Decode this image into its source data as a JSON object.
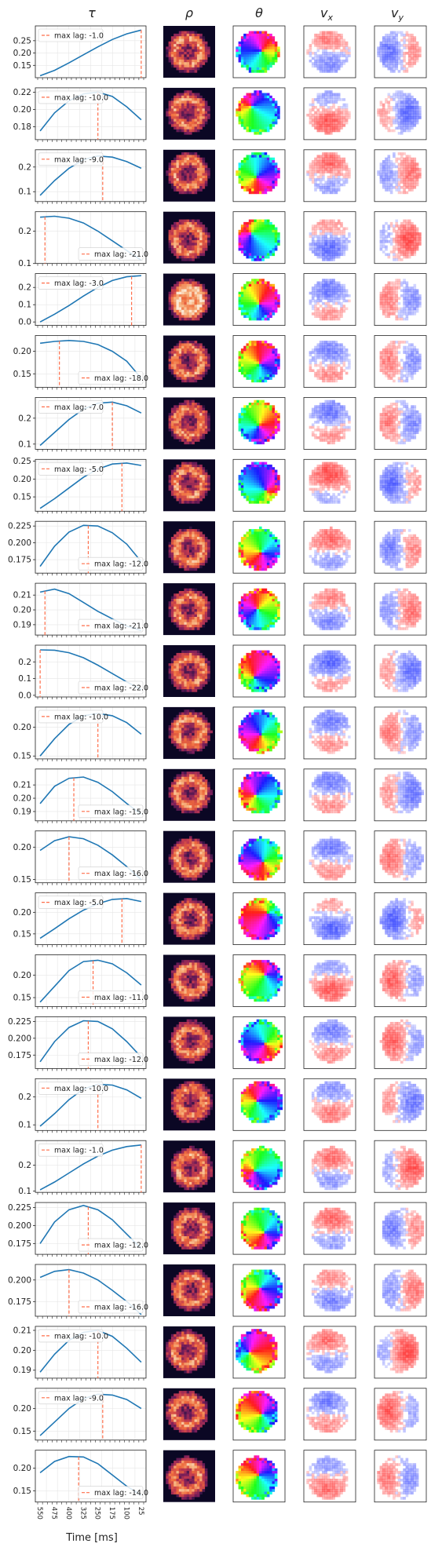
{
  "column_headers": [
    "τ",
    "ρ",
    "θ",
    "v",
    "v"
  ],
  "column_header_subscripts": [
    "",
    "",
    "",
    "x",
    "y"
  ],
  "x_axis_title": "Time [ms]",
  "x_tick_labels": [
    "550",
    "475",
    "400",
    "325",
    "250",
    "175",
    "100",
    "25"
  ],
  "legend_prefix": "max lag: ",
  "colors": {
    "curve": "#1f77b4",
    "lag_line": "#ff6e4a",
    "grid": "#e6e6e6",
    "rho_bg": "#0b0724",
    "rho_colormap": [
      "#0b0724",
      "#3b1549",
      "#7a1e5a",
      "#c0394f",
      "#ef6a3c",
      "#f7b07b",
      "#fbe8d5"
    ],
    "v_neg": "#2b3bff",
    "v_pos": "#ff2020"
  },
  "chart_data": {
    "type": "line",
    "panel_count": 24,
    "x_axis_label": "Time [ms]",
    "x_range_ms": [
      575,
      0
    ],
    "panels": [
      {
        "lag": -1.0,
        "lag_label": "-1.0",
        "yticks": [
          0.15,
          0.2,
          0.25
        ],
        "ylim": [
          0.1,
          0.31
        ],
        "x": [
          550,
          475,
          400,
          325,
          250,
          175,
          100,
          25
        ],
        "y": [
          0.108,
          0.13,
          0.16,
          0.193,
          0.225,
          0.255,
          0.278,
          0.293
        ]
      },
      {
        "lag": -10.0,
        "lag_label": "-10.0",
        "yticks": [
          0.18,
          0.2,
          0.22
        ],
        "ylim": [
          0.165,
          0.225
        ],
        "x": [
          550,
          475,
          400,
          325,
          250,
          175,
          100,
          25
        ],
        "y": [
          0.175,
          0.196,
          0.21,
          0.218,
          0.22,
          0.215,
          0.203,
          0.188
        ]
      },
      {
        "lag": -9.0,
        "lag_label": "-9.0",
        "yticks": [
          0.1,
          0.2
        ],
        "ylim": [
          0.06,
          0.27
        ],
        "x": [
          550,
          475,
          400,
          325,
          250,
          175,
          100,
          25
        ],
        "y": [
          0.085,
          0.145,
          0.195,
          0.23,
          0.245,
          0.24,
          0.222,
          0.195
        ]
      },
      {
        "lag": -21.0,
        "lag_label": "-21.0",
        "yticks": [
          0.1,
          0.2
        ],
        "ylim": [
          0.1,
          0.26
        ],
        "x": [
          550,
          475,
          400,
          325,
          250,
          175,
          100,
          25
        ],
        "y": [
          0.243,
          0.246,
          0.24,
          0.225,
          0.2,
          0.17,
          0.14,
          0.11
        ]
      },
      {
        "lag": -3.0,
        "lag_label": "-3.0",
        "yticks": [
          0.0,
          0.1,
          0.2
        ],
        "ylim": [
          -0.02,
          0.28
        ],
        "x": [
          550,
          475,
          400,
          325,
          250,
          175,
          100,
          25
        ],
        "y": [
          0.0,
          0.045,
          0.095,
          0.15,
          0.2,
          0.24,
          0.262,
          0.268
        ]
      },
      {
        "lag": -18.0,
        "lag_label": "-18.0",
        "yticks": [
          0.15,
          0.2
        ],
        "ylim": [
          0.12,
          0.235
        ],
        "x": [
          550,
          475,
          400,
          325,
          250,
          175,
          100,
          25
        ],
        "y": [
          0.218,
          0.222,
          0.224,
          0.222,
          0.215,
          0.2,
          0.178,
          0.14
        ]
      },
      {
        "lag": -7.0,
        "lag_label": "-7.0",
        "yticks": [
          0.1,
          0.2
        ],
        "ylim": [
          0.08,
          0.28
        ],
        "x": [
          550,
          475,
          400,
          325,
          250,
          175,
          100,
          25
        ],
        "y": [
          0.095,
          0.145,
          0.195,
          0.235,
          0.258,
          0.262,
          0.248,
          0.22
        ]
      },
      {
        "lag": -5.0,
        "lag_label": "-5.0",
        "yticks": [
          0.15,
          0.2,
          0.25
        ],
        "ylim": [
          0.11,
          0.255
        ],
        "x": [
          550,
          475,
          400,
          325,
          250,
          175,
          100,
          25
        ],
        "y": [
          0.118,
          0.145,
          0.175,
          0.205,
          0.228,
          0.242,
          0.245,
          0.238
        ]
      },
      {
        "lag": -12.0,
        "lag_label": "-12.0",
        "yticks": [
          0.175,
          0.2,
          0.225
        ],
        "ylim": [
          0.155,
          0.232
        ],
        "x": [
          550,
          475,
          400,
          325,
          250,
          175,
          100,
          25
        ],
        "y": [
          0.165,
          0.195,
          0.216,
          0.226,
          0.225,
          0.215,
          0.198,
          0.172
        ]
      },
      {
        "lag": -21.0,
        "lag_label": "-21.0",
        "yticks": [
          0.19,
          0.2,
          0.21
        ],
        "ylim": [
          0.183,
          0.218
        ],
        "x": [
          550,
          475,
          400,
          325,
          250,
          175,
          100,
          25
        ],
        "y": [
          0.212,
          0.214,
          0.211,
          0.205,
          0.199,
          0.194,
          0.189,
          0.186
        ]
      },
      {
        "lag": -22.0,
        "lag_label": "-22.0",
        "yticks": [
          0.0,
          0.1,
          0.2
        ],
        "ylim": [
          -0.01,
          0.3
        ],
        "x": [
          550,
          475,
          400,
          325,
          250,
          175,
          100,
          25
        ],
        "y": [
          0.272,
          0.27,
          0.255,
          0.225,
          0.18,
          0.13,
          0.08,
          0.035
        ]
      },
      {
        "lag": -10.0,
        "lag_label": "-10.0",
        "yticks": [
          0.15,
          0.2
        ],
        "ylim": [
          0.145,
          0.235
        ],
        "x": [
          550,
          475,
          400,
          325,
          250,
          175,
          100,
          25
        ],
        "y": [
          0.15,
          0.18,
          0.205,
          0.22,
          0.224,
          0.22,
          0.208,
          0.188
        ]
      },
      {
        "lag": -15.0,
        "lag_label": "-15.0",
        "yticks": [
          0.19,
          0.2,
          0.21
        ],
        "ylim": [
          0.183,
          0.222
        ],
        "x": [
          550,
          475,
          400,
          325,
          250,
          175,
          100,
          25
        ],
        "y": [
          0.196,
          0.209,
          0.215,
          0.216,
          0.212,
          0.205,
          0.196,
          0.188
        ]
      },
      {
        "lag": -16.0,
        "lag_label": "-16.0",
        "yticks": [
          0.15,
          0.2
        ],
        "ylim": [
          0.145,
          0.225
        ],
        "x": [
          550,
          475,
          400,
          325,
          250,
          175,
          100,
          25
        ],
        "y": [
          0.195,
          0.21,
          0.216,
          0.213,
          0.203,
          0.188,
          0.17,
          0.15
        ]
      },
      {
        "lag": -5.0,
        "lag_label": "-5.0",
        "yticks": [
          0.15,
          0.2
        ],
        "ylim": [
          0.125,
          0.245
        ],
        "x": [
          550,
          475,
          400,
          325,
          250,
          175,
          100,
          25
        ],
        "y": [
          0.14,
          0.162,
          0.185,
          0.205,
          0.22,
          0.23,
          0.232,
          0.225
        ]
      },
      {
        "lag": -11.0,
        "lag_label": "-11.0",
        "yticks": [
          0.15,
          0.2
        ],
        "ylim": [
          0.13,
          0.245
        ],
        "x": [
          550,
          475,
          400,
          325,
          250,
          175,
          100,
          25
        ],
        "y": [
          0.14,
          0.175,
          0.21,
          0.23,
          0.233,
          0.225,
          0.205,
          0.178
        ]
      },
      {
        "lag": -12.0,
        "lag_label": "-12.0",
        "yticks": [
          0.175,
          0.2,
          0.225
        ],
        "ylim": [
          0.155,
          0.232
        ],
        "x": [
          550,
          475,
          400,
          325,
          250,
          175,
          100,
          25
        ],
        "y": [
          0.165,
          0.195,
          0.216,
          0.226,
          0.225,
          0.214,
          0.195,
          0.172
        ]
      },
      {
        "lag": -10.0,
        "lag_label": "-10.0",
        "yticks": [
          0.1,
          0.2
        ],
        "ylim": [
          0.08,
          0.265
        ],
        "x": [
          550,
          475,
          400,
          325,
          250,
          175,
          100,
          25
        ],
        "y": [
          0.095,
          0.14,
          0.19,
          0.228,
          0.245,
          0.242,
          0.225,
          0.195
        ]
      },
      {
        "lag": -1.0,
        "lag_label": "-1.0",
        "yticks": [
          0.1,
          0.2
        ],
        "ylim": [
          0.095,
          0.295
        ],
        "x": [
          550,
          475,
          400,
          325,
          250,
          175,
          100,
          25
        ],
        "y": [
          0.105,
          0.135,
          0.17,
          0.205,
          0.235,
          0.258,
          0.272,
          0.278
        ]
      },
      {
        "lag": -12.0,
        "lag_label": "-12.0",
        "yticks": [
          0.175,
          0.2,
          0.225
        ],
        "ylim": [
          0.16,
          0.232
        ],
        "x": [
          550,
          475,
          400,
          325,
          250,
          175,
          100,
          25
        ],
        "y": [
          0.175,
          0.205,
          0.222,
          0.228,
          0.222,
          0.208,
          0.188,
          0.168
        ]
      },
      {
        "lag": -16.0,
        "lag_label": "-16.0",
        "yticks": [
          0.175,
          0.2
        ],
        "ylim": [
          0.158,
          0.218
        ],
        "x": [
          550,
          475,
          400,
          325,
          250,
          175,
          100,
          25
        ],
        "y": [
          0.203,
          0.21,
          0.212,
          0.208,
          0.2,
          0.188,
          0.175,
          0.16
        ]
      },
      {
        "lag": -10.0,
        "lag_label": "-10.0",
        "yticks": [
          0.19,
          0.2,
          0.21
        ],
        "ylim": [
          0.186,
          0.212
        ],
        "x": [
          550,
          475,
          400,
          325,
          250,
          175,
          100,
          25
        ],
        "y": [
          0.189,
          0.198,
          0.205,
          0.209,
          0.21,
          0.207,
          0.201,
          0.194
        ]
      },
      {
        "lag": -9.0,
        "lag_label": "-9.0",
        "yticks": [
          0.15,
          0.2
        ],
        "ylim": [
          0.13,
          0.245
        ],
        "x": [
          550,
          475,
          400,
          325,
          250,
          175,
          100,
          25
        ],
        "y": [
          0.14,
          0.17,
          0.2,
          0.222,
          0.232,
          0.23,
          0.22,
          0.2
        ]
      },
      {
        "lag": -14.0,
        "lag_label": "-14.0",
        "yticks": [
          0.15,
          0.2
        ],
        "ylim": [
          0.125,
          0.24
        ],
        "x": [
          550,
          475,
          400,
          325,
          250,
          175,
          100,
          25
        ],
        "y": [
          0.19,
          0.215,
          0.226,
          0.225,
          0.21,
          0.185,
          0.16,
          0.14
        ]
      }
    ]
  }
}
